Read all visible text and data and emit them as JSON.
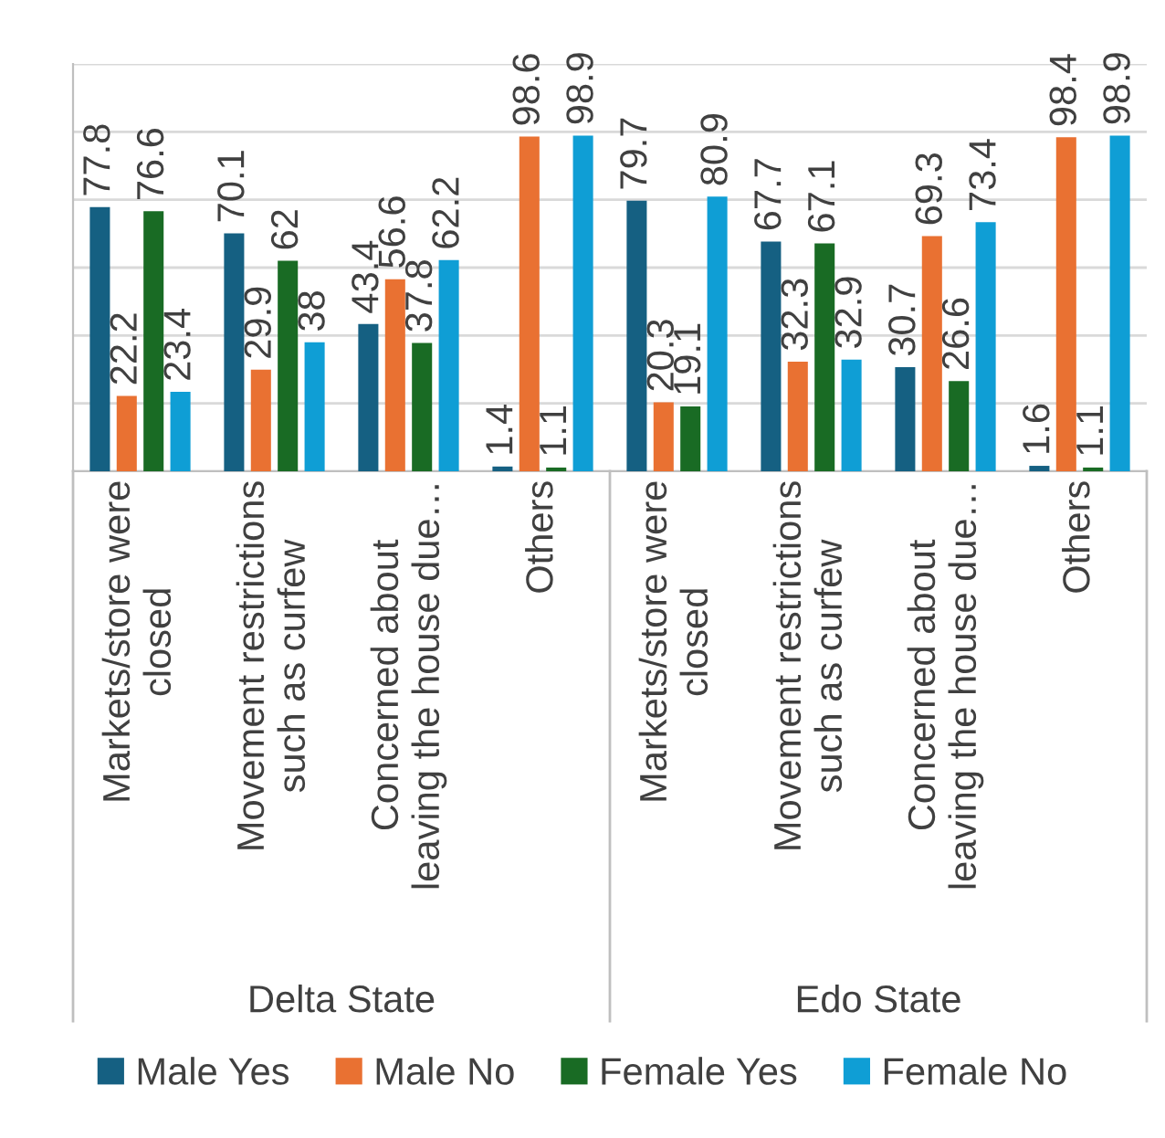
{
  "chart_data": {
    "type": "bar",
    "categories": [
      "Markets/store were\nclosed",
      "Movement restrictions\nsuch as curfew",
      "Concerned about\nleaving the house due…",
      "Others",
      "Markets/store were\nclosed",
      "Movement restrictions\nsuch as curfew",
      "Concerned about\nleaving the house due…",
      "Others"
    ],
    "series": [
      {
        "name": "Male Yes",
        "color": "#156082",
        "values": [
          77.8,
          70.1,
          43.4,
          1.4,
          79.7,
          67.7,
          30.7,
          1.6
        ]
      },
      {
        "name": "Male No",
        "color": "#e97132",
        "values": [
          22.2,
          29.9,
          56.6,
          98.6,
          20.3,
          32.3,
          69.3,
          98.4
        ]
      },
      {
        "name": "Female Yes",
        "color": "#196b24",
        "values": [
          76.6,
          62,
          37.8,
          1.1,
          19.1,
          67.1,
          26.6,
          1.1
        ]
      },
      {
        "name": "Female No",
        "color": "#0f9ed5",
        "values": [
          23.4,
          38,
          62.2,
          98.9,
          80.9,
          32.9,
          73.4,
          98.9
        ]
      }
    ],
    "annotations": [
      "Delta State",
      "Edo State"
    ],
    "ylim": [
      0,
      120
    ],
    "yticks": [
      {
        "value": 0,
        "label": null
      },
      {
        "value": 20,
        "label": null
      },
      {
        "value": 40,
        "label": null
      },
      {
        "value": 60,
        "label": null
      },
      {
        "value": 80,
        "label": null
      },
      {
        "value": 100,
        "label": null
      },
      {
        "value": 120,
        "label": null
      }
    ],
    "grid": "y",
    "data_labels": true,
    "legend": "bottom",
    "tick_labels": "x"
  }
}
